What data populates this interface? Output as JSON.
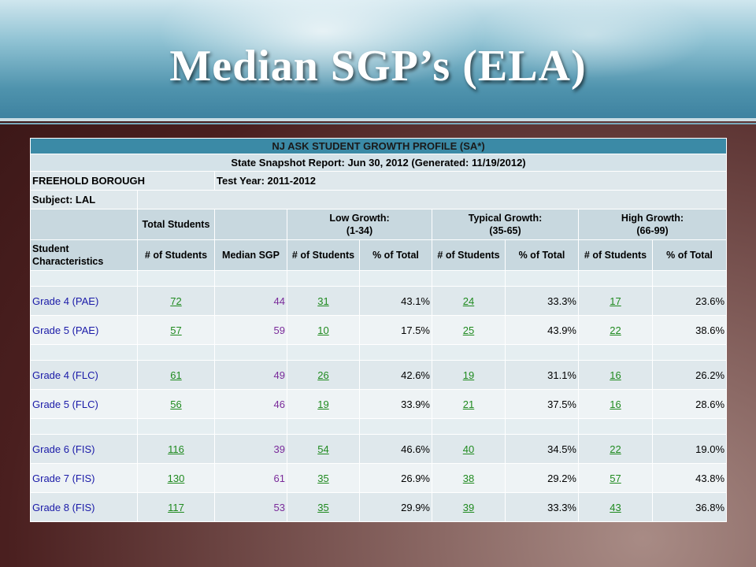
{
  "slide": {
    "title": "Median SGP’s (ELA)"
  },
  "report": {
    "header": "NJ ASK STUDENT GROWTH PROFILE (SA*)",
    "snapshot": "State Snapshot Report: Jun 30, 2012 (Generated: 11/19/2012)",
    "district": "FREEHOLD BOROUGH",
    "test_year": "Test Year: 2011-2012",
    "subject": "Subject: LAL",
    "groups": {
      "total": "Total Students",
      "low": "Low Growth:",
      "low_range": "(1-34)",
      "typical": "Typical Growth:",
      "typical_range": "(35-65)",
      "high": "High Growth:",
      "high_range": "(66-99)"
    },
    "columns": [
      "Student Characteristics",
      "# of Students",
      "Median SGP",
      "# of Students",
      "% of Total",
      "# of Students",
      "% of Total",
      "# of Students",
      "% of Total"
    ],
    "rows": [
      {
        "label": "Grade 4 (PAE)",
        "total": "72",
        "median": "44",
        "low_n": "31",
        "low_pct": "43.1%",
        "typ_n": "24",
        "typ_pct": "33.3%",
        "high_n": "17",
        "high_pct": "23.6%"
      },
      {
        "label": "Grade 5 (PAE)",
        "total": "57",
        "median": "59",
        "low_n": "10",
        "low_pct": "17.5%",
        "typ_n": "25",
        "typ_pct": "43.9%",
        "high_n": "22",
        "high_pct": "38.6%"
      },
      {
        "label": "Grade 4 (FLC)",
        "total": "61",
        "median": "49",
        "low_n": "26",
        "low_pct": "42.6%",
        "typ_n": "19",
        "typ_pct": "31.1%",
        "high_n": "16",
        "high_pct": "26.2%"
      },
      {
        "label": "Grade 5 (FLC)",
        "total": "56",
        "median": "46",
        "low_n": "19",
        "low_pct": "33.9%",
        "typ_n": "21",
        "typ_pct": "37.5%",
        "high_n": "16",
        "high_pct": "28.6%"
      },
      {
        "label": "Grade 6 (FIS)",
        "total": "116",
        "median": "39",
        "low_n": "54",
        "low_pct": "46.6%",
        "typ_n": "40",
        "typ_pct": "34.5%",
        "high_n": "22",
        "high_pct": "19.0%"
      },
      {
        "label": "Grade 7 (FIS)",
        "total": "130",
        "median": "61",
        "low_n": "35",
        "low_pct": "26.9%",
        "typ_n": "38",
        "typ_pct": "29.2%",
        "high_n": "57",
        "high_pct": "43.8%"
      },
      {
        "label": "Grade 8 (FIS)",
        "total": "117",
        "median": "53",
        "low_n": "35",
        "low_pct": "29.9%",
        "typ_n": "39",
        "typ_pct": "33.3%",
        "high_n": "43",
        "high_pct": "36.8%"
      }
    ]
  }
}
